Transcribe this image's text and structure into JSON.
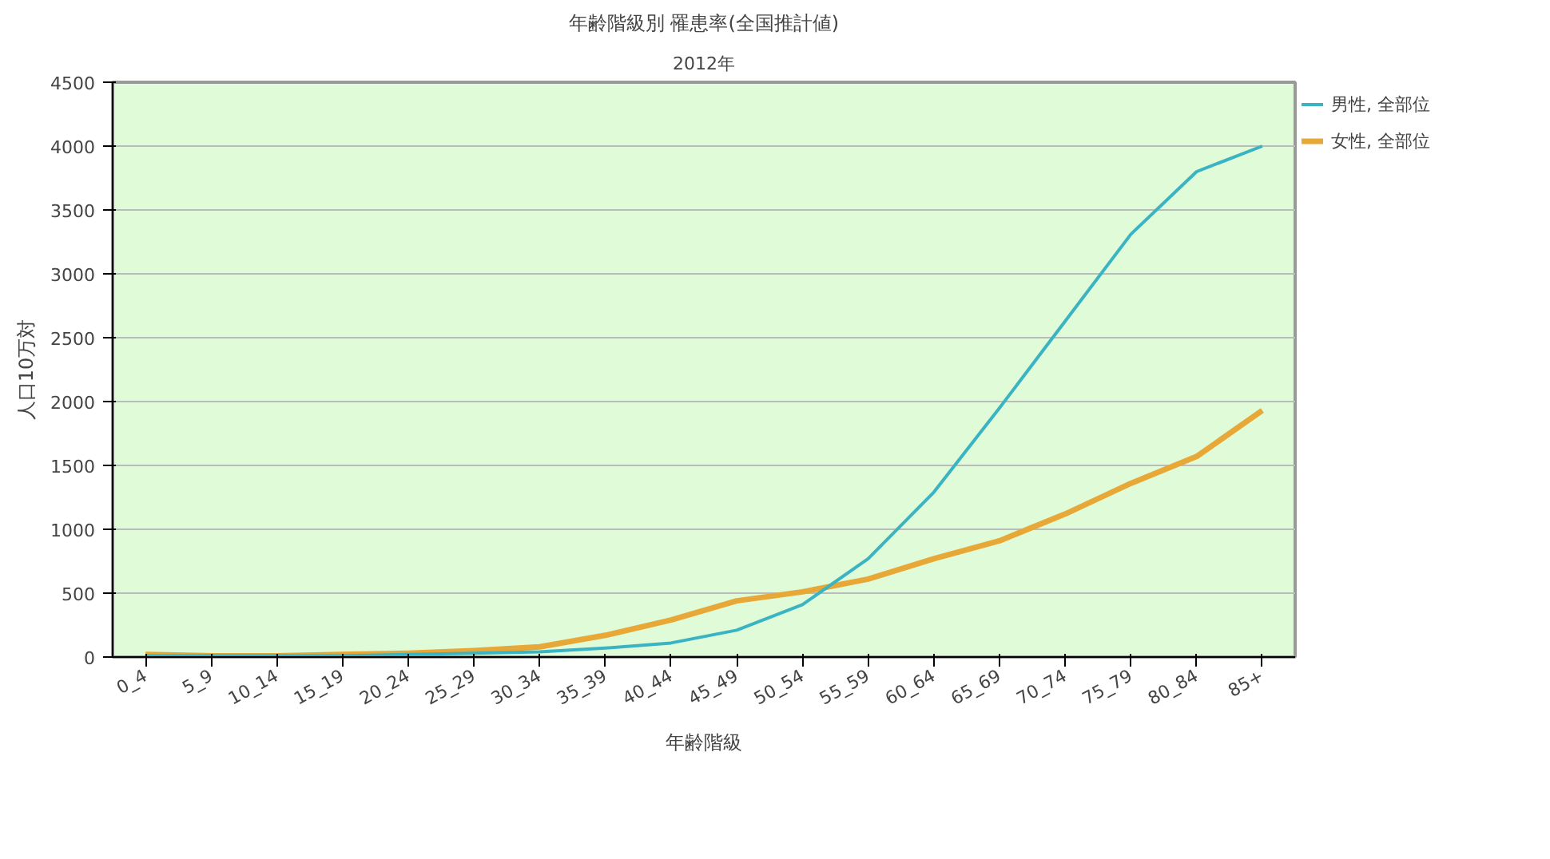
{
  "chart_data": {
    "type": "line",
    "title": "年齢階級別 罹患率(全国推計値)",
    "subtitle": "2012年",
    "xlabel": "年齢階級",
    "ylabel": "人口10万対",
    "categories": [
      "0_4",
      "5_9",
      "10_14",
      "15_19",
      "20_24",
      "25_29",
      "30_34",
      "35_39",
      "40_44",
      "45_49",
      "50_54",
      "55_59",
      "60_64",
      "65_69",
      "70_74",
      "75_79",
      "80_84",
      "85+"
    ],
    "series": [
      {
        "name": "男性, 全部位",
        "color": "#3ab3c3",
        "values": [
          10,
          10,
          10,
          10,
          20,
          30,
          40,
          70,
          110,
          210,
          410,
          770,
          1290,
          1950,
          2630,
          3310,
          3800,
          4000
        ]
      },
      {
        "name": "女性, 全部位",
        "color": "#e8a838",
        "values": [
          20,
          10,
          10,
          20,
          30,
          50,
          80,
          170,
          290,
          440,
          510,
          610,
          770,
          910,
          1120,
          1360,
          1570,
          1930
        ]
      }
    ],
    "ylim": [
      0,
      4500
    ],
    "yticks": [
      0,
      500,
      1000,
      1500,
      2000,
      2500,
      3000,
      3500,
      4000,
      4500
    ],
    "grid": "y",
    "legend": "top right",
    "marker": "none",
    "line_style": "solid"
  }
}
